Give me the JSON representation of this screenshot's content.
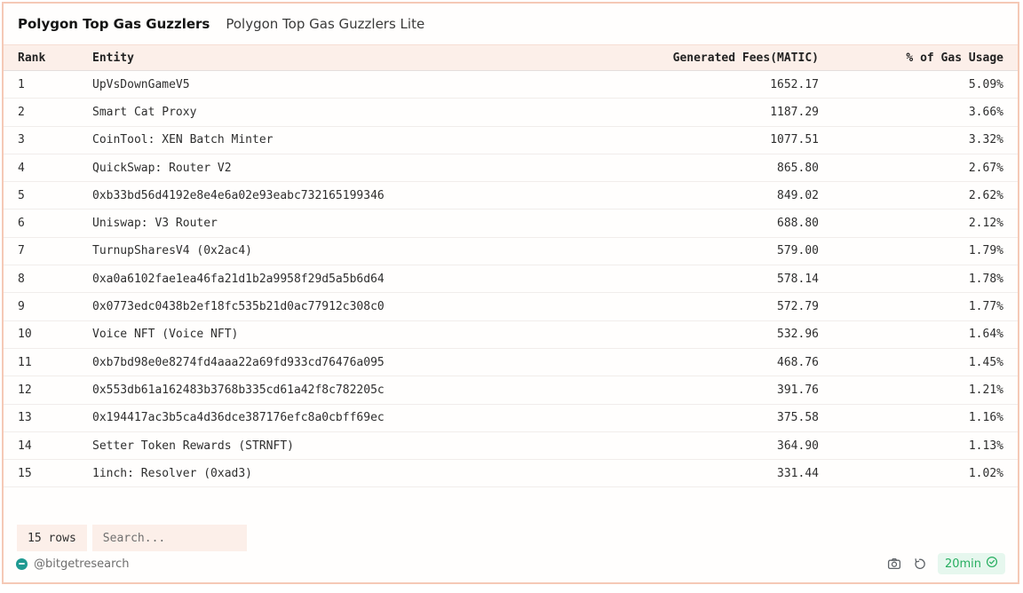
{
  "tabs": [
    {
      "label": "Polygon Top Gas Guzzlers",
      "active": true
    },
    {
      "label": "Polygon Top Gas Guzzlers Lite",
      "active": false
    }
  ],
  "table": {
    "columns": [
      "Rank",
      "Entity",
      "Generated Fees(MATIC)",
      "% of Gas Usage"
    ],
    "column_keys": [
      "rank",
      "entity",
      "fees",
      "usage"
    ],
    "rows": [
      [
        "1",
        "UpVsDownGameV5",
        "1652.17",
        "5.09%"
      ],
      [
        "2",
        "Smart Cat Proxy",
        "1187.29",
        "3.66%"
      ],
      [
        "3",
        "CoinTool: XEN Batch Minter",
        "1077.51",
        "3.32%"
      ],
      [
        "4",
        "QuickSwap: Router V2",
        "865.80",
        "2.67%"
      ],
      [
        "5",
        "0xb33bd56d4192e8e4e6a02e93eabc732165199346",
        "849.02",
        "2.62%"
      ],
      [
        "6",
        "Uniswap: V3 Router",
        "688.80",
        "2.12%"
      ],
      [
        "7",
        "TurnupSharesV4 (0x2ac4)",
        "579.00",
        "1.79%"
      ],
      [
        "8",
        "0xa0a6102fae1ea46fa21d1b2a9958f29d5a5b6d64",
        "578.14",
        "1.78%"
      ],
      [
        "9",
        "0x0773edc0438b2ef18fc535b21d0ac77912c308c0",
        "572.79",
        "1.77%"
      ],
      [
        "10",
        "Voice NFT (Voice NFT)",
        "532.96",
        "1.64%"
      ],
      [
        "11",
        "0xb7bd98e0e8274fd4aaa22a69fd933cd76476a095",
        "468.76",
        "1.45%"
      ],
      [
        "12",
        "0x553db61a162483b3768b335cd61a42f8c782205c",
        "391.76",
        "1.21%"
      ],
      [
        "13",
        "0x194417ac3b5ca4d36dce387176efc8a0cbff69ec",
        "375.58",
        "1.16%"
      ],
      [
        "14",
        "Setter Token Rewards (STRNFT)",
        "364.90",
        "1.13%"
      ],
      [
        "15",
        "1inch: Resolver (0xad3)",
        "331.44",
        "1.02%"
      ]
    ]
  },
  "footer": {
    "rows_label": "15 rows",
    "search_placeholder": "Search...",
    "watermark": "@bitgetresearch",
    "refresh_interval": "20min"
  },
  "icons": {
    "camera": "camera-icon",
    "refresh": "refresh-history-icon",
    "check": "check-circle-icon",
    "avatar": "watermark-avatar-icon"
  },
  "colors": {
    "panel_border": "#f5c9b6",
    "header_bg": "#fcefe9",
    "control_bg": "#fcefe9",
    "row_divider": "#f1edeb",
    "text_primary": "#2e2e2e",
    "watermark_text": "#6e6e6e",
    "avatar_teal": "#1f9a92",
    "pill_bg": "#e6f7ee",
    "pill_green": "#27ae60",
    "icon_gray": "#5f6368"
  }
}
